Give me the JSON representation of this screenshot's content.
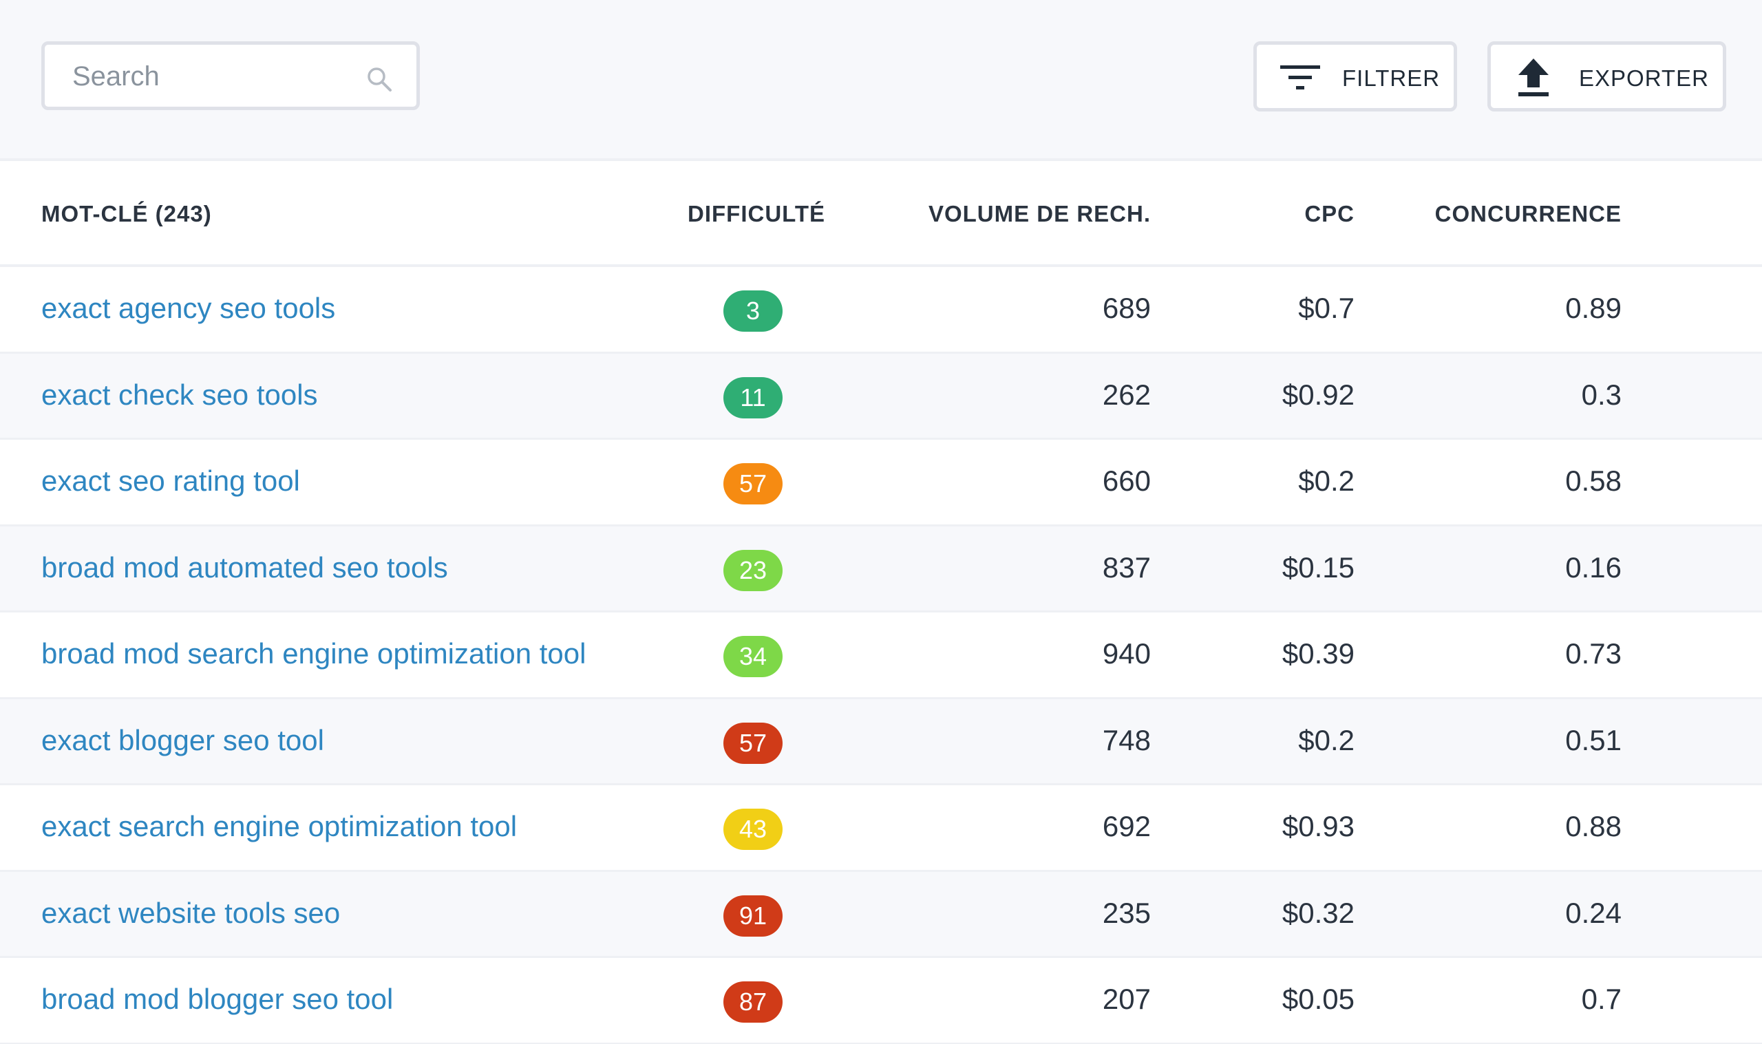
{
  "search": {
    "placeholder": "Search",
    "value": ""
  },
  "actions": {
    "filter_label": "FILTRER",
    "export_label": "EXPORTER"
  },
  "table": {
    "headers": {
      "keyword": "MOT-CLÉ (243)",
      "difficulty": "DIFFICULTÉ",
      "volume": "VOLUME DE RECH.",
      "cpc": "CPC",
      "competition": "CONCURRENCE"
    },
    "rows": [
      {
        "keyword": "exact agency seo tools",
        "difficulty": "3",
        "difficulty_color": "#2fae74",
        "volume": "689",
        "cpc": "$0.7",
        "competition": "0.89"
      },
      {
        "keyword": "exact check seo tools",
        "difficulty": "11",
        "difficulty_color": "#2fae74",
        "volume": "262",
        "cpc": "$0.92",
        "competition": "0.3"
      },
      {
        "keyword": "exact seo rating tool",
        "difficulty": "57",
        "difficulty_color": "#f68b12",
        "volume": "660",
        "cpc": "$0.2",
        "competition": "0.58"
      },
      {
        "keyword": "broad mod automated seo tools",
        "difficulty": "23",
        "difficulty_color": "#7ed848",
        "volume": "837",
        "cpc": "$0.15",
        "competition": "0.16"
      },
      {
        "keyword": "broad mod search engine optimization tool",
        "difficulty": "34",
        "difficulty_color": "#7ed848",
        "volume": "940",
        "cpc": "$0.39",
        "competition": "0.73"
      },
      {
        "keyword": "exact blogger seo tool",
        "difficulty": "57",
        "difficulty_color": "#d03b18",
        "volume": "748",
        "cpc": "$0.2",
        "competition": "0.51"
      },
      {
        "keyword": "exact search engine optimization tool",
        "difficulty": "43",
        "difficulty_color": "#f1cf16",
        "volume": "692",
        "cpc": "$0.93",
        "competition": "0.88"
      },
      {
        "keyword": "exact website tools seo",
        "difficulty": "91",
        "difficulty_color": "#d03b18",
        "volume": "235",
        "cpc": "$0.32",
        "competition": "0.24"
      },
      {
        "keyword": "broad mod blogger seo tool",
        "difficulty": "87",
        "difficulty_color": "#d03b18",
        "volume": "207",
        "cpc": "$0.05",
        "competition": "0.7"
      }
    ]
  },
  "colors": {
    "link": "#2e86c1",
    "toolbar_bg": "#f7f8fb",
    "border": "#dfe1e8"
  },
  "icons": {
    "search": "search-icon",
    "filter": "filter-icon",
    "export": "upload-icon"
  }
}
